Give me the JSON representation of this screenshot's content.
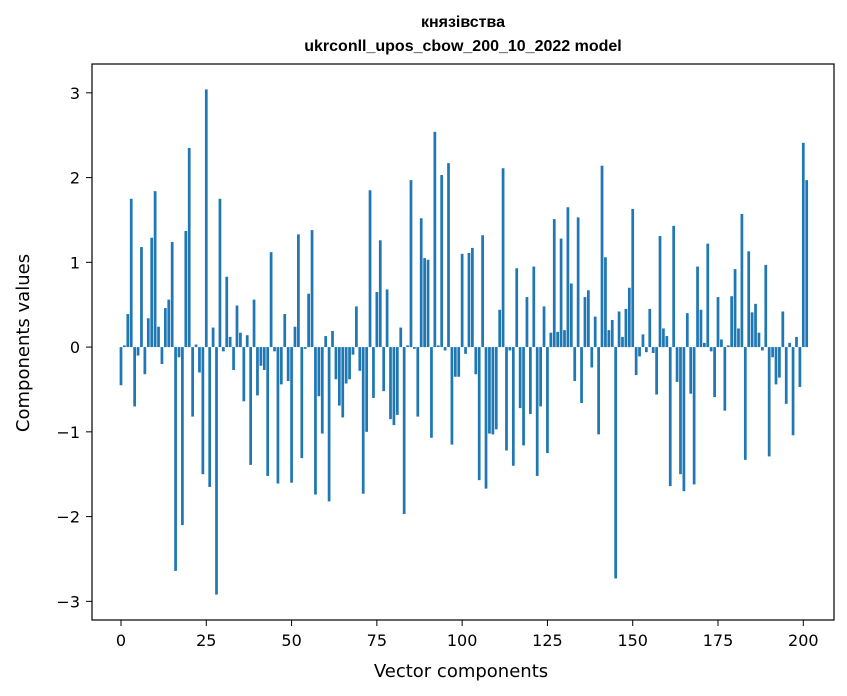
{
  "chart_data": {
    "type": "bar",
    "title": "князівства",
    "subtitle": "ukrconll_upos_cbow_200_10_2022 model",
    "xlabel": "Vector components",
    "ylabel": "Components values",
    "xlim": [
      -8.5,
      209
    ],
    "ylim": [
      -3.22,
      3.34
    ],
    "xticks": [
      0,
      25,
      50,
      75,
      100,
      125,
      150,
      175,
      200
    ],
    "yticks": [
      -3,
      -2,
      -1,
      0,
      1,
      2,
      3
    ],
    "ytick_labels": [
      "−3",
      "−2",
      "−1",
      "0",
      "1",
      "2",
      "3"
    ],
    "grid": false,
    "legend": "none",
    "bar_color": "#1f77b4",
    "values": [
      -0.45,
      0.02,
      0.39,
      1.75,
      -0.7,
      -0.1,
      1.18,
      -0.32,
      0.34,
      1.29,
      1.84,
      0.24,
      -0.2,
      0.46,
      0.56,
      1.24,
      -2.64,
      -0.12,
      -2.1,
      1.37,
      2.35,
      -0.82,
      0.03,
      -0.3,
      -1.5,
      3.04,
      -1.65,
      0.23,
      -2.92,
      1.75,
      -0.05,
      0.83,
      0.12,
      -0.27,
      0.49,
      0.17,
      -0.64,
      0.14,
      -1.39,
      0.56,
      -0.57,
      -0.22,
      -0.27,
      -1.52,
      1.12,
      -0.05,
      -1.61,
      -0.44,
      0.39,
      -0.4,
      -1.6,
      0.24,
      1.33,
      -1.31,
      -0.02,
      0.63,
      1.38,
      -1.74,
      -0.58,
      -1.02,
      0.13,
      -1.82,
      0.19,
      -0.38,
      -0.69,
      -0.83,
      -0.43,
      -0.38,
      -0.09,
      0.48,
      -0.28,
      -1.73,
      -1.0,
      1.85,
      -0.6,
      0.65,
      1.26,
      -0.52,
      0.68,
      -0.85,
      -0.92,
      -0.8,
      0.23,
      -1.97,
      0.02,
      1.97,
      -0.02,
      -0.82,
      1.52,
      1.05,
      1.03,
      -1.07,
      2.54,
      0.02,
      2.03,
      -0.04,
      2.17,
      -1.15,
      -0.35,
      -0.35,
      1.1,
      -0.08,
      1.11,
      1.17,
      -0.32,
      -1.57,
      1.32,
      -1.67,
      -1.02,
      -1.03,
      -0.97,
      0.44,
      2.11,
      -1.22,
      -0.04,
      -1.4,
      0.93,
      -0.72,
      -1.16,
      0.59,
      -0.79,
      0.95,
      -1.52,
      -0.7,
      0.48,
      -1.25,
      0.17,
      1.51,
      0.18,
      1.28,
      0.2,
      1.65,
      0.75,
      -0.4,
      1.53,
      -0.66,
      0.59,
      0.67,
      -0.24,
      0.36,
      -1.03,
      2.14,
      1.06,
      0.2,
      0.32,
      -2.73,
      0.42,
      0.12,
      0.45,
      0.7,
      1.63,
      -0.33,
      -0.11,
      0.15,
      -0.06,
      0.45,
      -0.07,
      -0.56,
      1.31,
      0.22,
      0.13,
      -1.64,
      1.43,
      -0.41,
      -1.5,
      -1.7,
      0.4,
      -0.55,
      -1.62,
      0.95,
      0.44,
      0.05,
      1.22,
      -0.05,
      -0.59,
      0.59,
      0.09,
      -0.75,
      0.02,
      0.6,
      0.92,
      0.22,
      1.57,
      -1.33,
      1.13,
      0.41,
      0.51,
      0.17,
      -0.04,
      0.97,
      -1.29,
      -0.12,
      -0.44,
      -0.36,
      0.42,
      -0.67,
      0.05,
      -1.04,
      0.12,
      -0.47,
      2.41,
      1.97
    ]
  }
}
